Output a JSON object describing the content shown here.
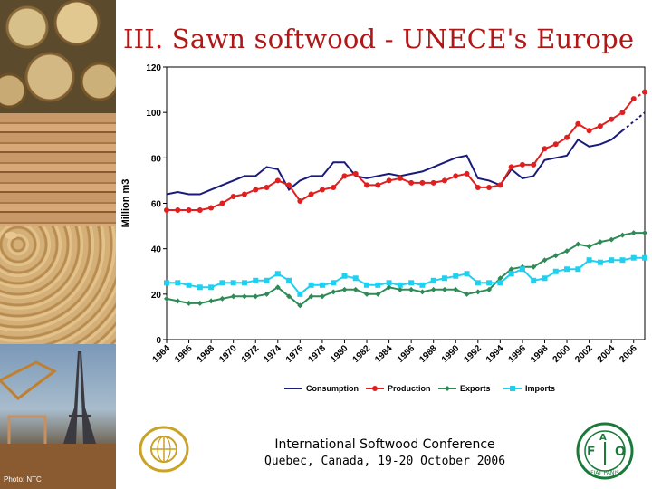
{
  "slide": {
    "title": "III. Sawn softwood - UNECE's Europe",
    "photo_credit": "Photo: NTC"
  },
  "footer": {
    "conference": "International Softwood Conference",
    "location": "Quebec, Canada, 19-20 October 2006"
  },
  "logos": {
    "left": "un-emblem-icon",
    "right": "fao-logo-icon",
    "fao_letters": [
      "F",
      "A",
      "O"
    ],
    "fao_motto": "FIAT PANIS"
  },
  "chart_data": {
    "type": "line",
    "title": "",
    "xlabel": "",
    "ylabel": "Million m3",
    "ylim": [
      0,
      120
    ],
    "yticks": [
      0,
      20,
      40,
      60,
      80,
      100,
      120
    ],
    "xlim": [
      1964,
      2007
    ],
    "xticks": [
      1964,
      1966,
      1968,
      1970,
      1972,
      1974,
      1976,
      1978,
      1980,
      1982,
      1984,
      1986,
      1988,
      1990,
      1992,
      1994,
      1996,
      1998,
      2000,
      2002,
      2004,
      2006
    ],
    "grid": false,
    "legend": "bottom",
    "x": [
      1964,
      1965,
      1966,
      1967,
      1968,
      1969,
      1970,
      1971,
      1972,
      1973,
      1974,
      1975,
      1976,
      1977,
      1978,
      1979,
      1980,
      1981,
      1982,
      1983,
      1984,
      1985,
      1986,
      1987,
      1988,
      1989,
      1990,
      1991,
      1992,
      1993,
      1994,
      1995,
      1996,
      1997,
      1998,
      1999,
      2000,
      2001,
      2002,
      2003,
      2004,
      2005,
      2006,
      2007
    ],
    "series": [
      {
        "name": "Consumption",
        "color": "#1a1a7a",
        "marker": "none",
        "projected_from": 2005,
        "values": [
          64,
          65,
          64,
          64,
          66,
          68,
          70,
          72,
          72,
          76,
          75,
          66,
          70,
          72,
          72,
          78,
          78,
          72,
          71,
          72,
          73,
          72,
          73,
          74,
          76,
          78,
          80,
          81,
          71,
          70,
          68,
          75,
          71,
          72,
          79,
          80,
          81,
          88,
          85,
          86,
          88,
          92,
          96,
          100
        ]
      },
      {
        "name": "Production",
        "color": "#e02020",
        "marker": "circle",
        "projected_from": 2006,
        "values": [
          57,
          57,
          57,
          57,
          58,
          60,
          63,
          64,
          66,
          67,
          70,
          68,
          61,
          64,
          66,
          67,
          72,
          73,
          68,
          68,
          70,
          71,
          69,
          69,
          69,
          70,
          72,
          73,
          67,
          67,
          68,
          76,
          77,
          77,
          84,
          86,
          89,
          95,
          92,
          94,
          97,
          100,
          106,
          109
        ]
      },
      {
        "name": "Exports",
        "color": "#2e8b57",
        "marker": "diamond",
        "projected_from": 2007,
        "values": [
          18,
          17,
          16,
          16,
          17,
          18,
          19,
          19,
          19,
          20,
          23,
          19,
          15,
          19,
          19,
          21,
          22,
          22,
          20,
          20,
          23,
          22,
          22,
          21,
          22,
          22,
          22,
          20,
          21,
          22,
          27,
          31,
          32,
          32,
          35,
          37,
          39,
          42,
          41,
          43,
          44,
          46,
          47,
          47
        ]
      },
      {
        "name": "Imports",
        "color": "#20d0f0",
        "marker": "square",
        "projected_from": 2007,
        "values": [
          25,
          25,
          24,
          23,
          23,
          25,
          25,
          25,
          26,
          26,
          29,
          26,
          20,
          24,
          24,
          25,
          28,
          27,
          24,
          24,
          25,
          24,
          25,
          24,
          26,
          27,
          28,
          29,
          25,
          25,
          25,
          29,
          31,
          26,
          27,
          30,
          31,
          31,
          35,
          34,
          35,
          35,
          36,
          36
        ]
      }
    ]
  }
}
